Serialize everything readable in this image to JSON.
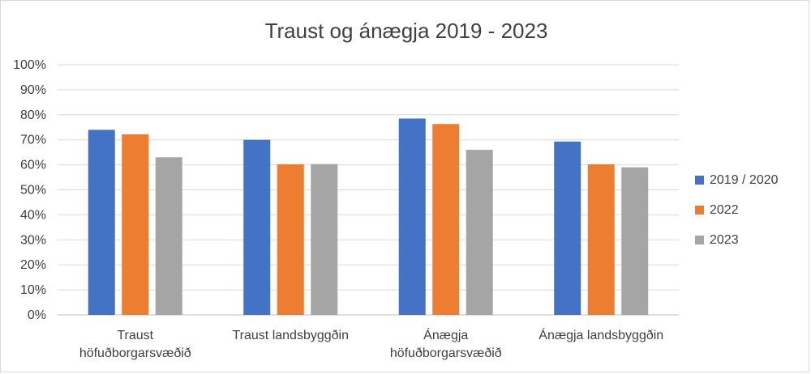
{
  "chart_data": {
    "type": "bar",
    "title": "Traust og ánægja 2019 - 2023",
    "categories": [
      [
        "Traust",
        "höfuðborgarsvæðið"
      ],
      [
        "Traust landsbyggðin"
      ],
      [
        "Ánægja",
        "höfuðborgarsvæðið"
      ],
      [
        "Ánægja landsbyggðin"
      ]
    ],
    "series": [
      {
        "name": "2019 / 2020",
        "color": "#4472c4",
        "values": [
          74,
          70,
          78.5,
          69.3
        ]
      },
      {
        "name": "2022",
        "color": "#ed7d31",
        "values": [
          72.2,
          60.2,
          76.3,
          60.2
        ]
      },
      {
        "name": "2023",
        "color": "#a5a5a5",
        "values": [
          63,
          60.3,
          66,
          59
        ]
      }
    ],
    "ylim": [
      0,
      100
    ],
    "yticks": [
      "0%",
      "10%",
      "20%",
      "30%",
      "40%",
      "50%",
      "60%",
      "70%",
      "80%",
      "90%",
      "100%"
    ],
    "grid": true,
    "legend_position": "right",
    "xlabel": "",
    "ylabel": ""
  }
}
